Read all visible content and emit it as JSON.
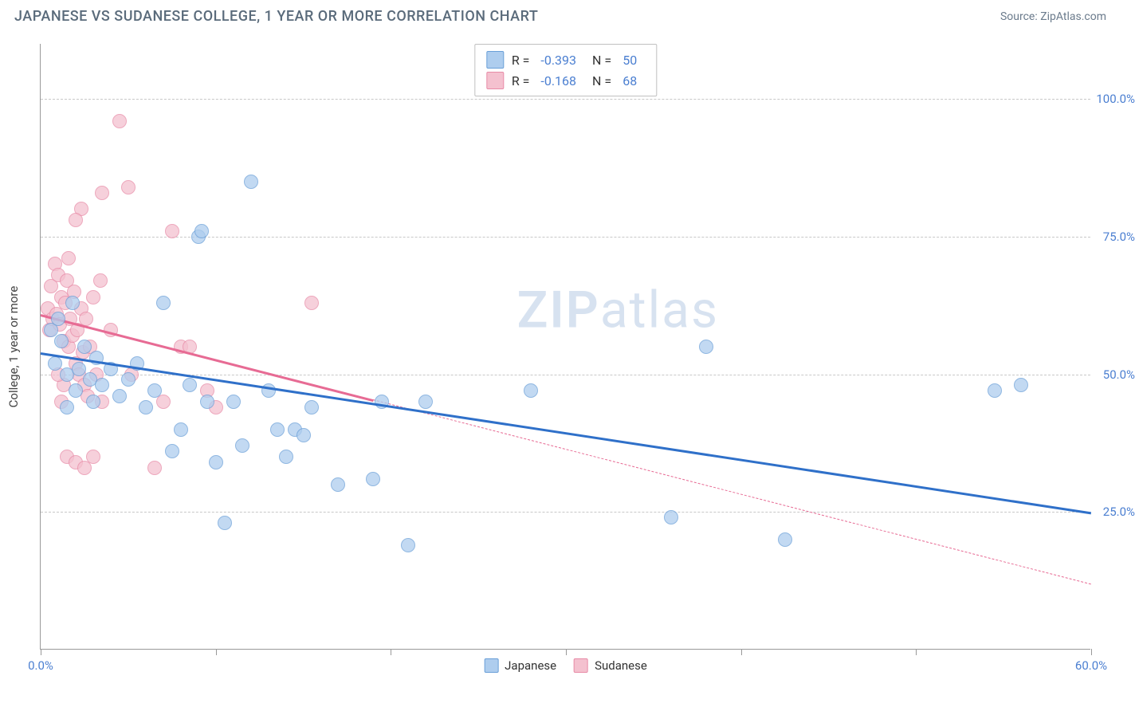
{
  "title": "JAPANESE VS SUDANESE COLLEGE, 1 YEAR OR MORE CORRELATION CHART",
  "source": "Source: ZipAtlas.com",
  "watermark": {
    "zip": "ZIP",
    "atlas": "atlas"
  },
  "ylabel": "College, 1 year or more",
  "chart": {
    "type": "scatter",
    "xlim": [
      0,
      60
    ],
    "ylim": [
      0,
      110
    ],
    "yticks": [
      25,
      50,
      75,
      100
    ],
    "ytick_labels": [
      "25.0%",
      "50.0%",
      "75.0%",
      "100.0%"
    ],
    "xticks": [
      0,
      10,
      20,
      30,
      40,
      50,
      60
    ],
    "xtick_labels_shown": {
      "0": "0.0%",
      "60": "60.0%"
    },
    "background_color": "#ffffff",
    "grid_color": "#c8c8c8",
    "axis_color": "#999999",
    "tick_label_color": "#4b7fd1",
    "marker_size": 18,
    "marker_opacity": 0.75
  },
  "series": {
    "japanese": {
      "label": "Japanese",
      "fill": "#aecdee",
      "stroke": "#6a9fd8",
      "trend_color": "#2f70c9",
      "trend_width": 3,
      "R": "-0.393",
      "N": "50",
      "trend": {
        "x1": 0,
        "y1": 54,
        "x2": 60,
        "y2": 25
      },
      "trend_solid_until_x": 60,
      "points": [
        [
          0.6,
          58
        ],
        [
          0.8,
          52
        ],
        [
          1.0,
          60
        ],
        [
          1.2,
          56
        ],
        [
          1.5,
          50
        ],
        [
          1.8,
          63
        ],
        [
          1.5,
          44
        ],
        [
          2.0,
          47
        ],
        [
          2.2,
          51
        ],
        [
          2.5,
          55
        ],
        [
          2.8,
          49
        ],
        [
          3.0,
          45
        ],
        [
          3.2,
          53
        ],
        [
          3.5,
          48
        ],
        [
          4.0,
          51
        ],
        [
          4.5,
          46
        ],
        [
          5.0,
          49
        ],
        [
          5.5,
          52
        ],
        [
          6.0,
          44
        ],
        [
          6.5,
          47
        ],
        [
          7.0,
          63
        ],
        [
          7.5,
          36
        ],
        [
          8.0,
          40
        ],
        [
          8.5,
          48
        ],
        [
          9.0,
          75
        ],
        [
          9.2,
          76
        ],
        [
          9.5,
          45
        ],
        [
          10.0,
          34
        ],
        [
          10.5,
          23
        ],
        [
          11.0,
          45
        ],
        [
          11.5,
          37
        ],
        [
          12.0,
          85
        ],
        [
          13.0,
          47
        ],
        [
          13.5,
          40
        ],
        [
          14.0,
          35
        ],
        [
          14.5,
          40
        ],
        [
          15.0,
          39
        ],
        [
          15.5,
          44
        ],
        [
          17.0,
          30
        ],
        [
          19.0,
          31
        ],
        [
          19.5,
          45
        ],
        [
          21.0,
          19
        ],
        [
          22.0,
          45
        ],
        [
          28.0,
          47
        ],
        [
          36.0,
          24
        ],
        [
          38.0,
          55
        ],
        [
          42.5,
          20
        ],
        [
          54.5,
          47
        ],
        [
          56.0,
          48
        ]
      ]
    },
    "sudanese": {
      "label": "Sudanese",
      "fill": "#f4c1cf",
      "stroke": "#e88ba7",
      "trend_color": "#e76b94",
      "trend_width": 3,
      "R": "-0.168",
      "N": "68",
      "trend": {
        "x1": 0,
        "y1": 61,
        "x2": 60,
        "y2": 12
      },
      "trend_solid_until_x": 19,
      "points": [
        [
          0.4,
          62
        ],
        [
          0.5,
          58
        ],
        [
          0.6,
          66
        ],
        [
          0.7,
          60
        ],
        [
          0.8,
          70
        ],
        [
          0.9,
          61
        ],
        [
          1.0,
          68
        ],
        [
          1.1,
          59
        ],
        [
          1.2,
          64
        ],
        [
          1.3,
          56
        ],
        [
          1.4,
          63
        ],
        [
          1.5,
          67
        ],
        [
          1.6,
          55
        ],
        [
          1.7,
          60
        ],
        [
          1.8,
          57
        ],
        [
          1.9,
          65
        ],
        [
          2.0,
          52
        ],
        [
          2.1,
          58
        ],
        [
          2.2,
          50
        ],
        [
          2.3,
          62
        ],
        [
          2.4,
          54
        ],
        [
          2.5,
          48
        ],
        [
          2.6,
          60
        ],
        [
          2.7,
          46
        ],
        [
          2.3,
          80
        ],
        [
          2.0,
          78
        ],
        [
          1.6,
          71
        ],
        [
          1.3,
          48
        ],
        [
          1.2,
          45
        ],
        [
          1.0,
          50
        ],
        [
          2.8,
          55
        ],
        [
          3.0,
          64
        ],
        [
          3.2,
          50
        ],
        [
          3.4,
          67
        ],
        [
          3.5,
          83
        ],
        [
          1.5,
          35
        ],
        [
          2.0,
          34
        ],
        [
          2.5,
          33
        ],
        [
          3.5,
          45
        ],
        [
          3.0,
          35
        ],
        [
          4.0,
          58
        ],
        [
          4.5,
          96
        ],
        [
          5.0,
          84
        ],
        [
          5.2,
          50
        ],
        [
          6.5,
          33
        ],
        [
          7.0,
          45
        ],
        [
          7.5,
          76
        ],
        [
          8.0,
          55
        ],
        [
          8.5,
          55
        ],
        [
          9.5,
          47
        ],
        [
          10.0,
          44
        ],
        [
          15.5,
          63
        ]
      ]
    }
  },
  "stat_legend": {
    "R_label": "R =",
    "N_label": "N ="
  }
}
